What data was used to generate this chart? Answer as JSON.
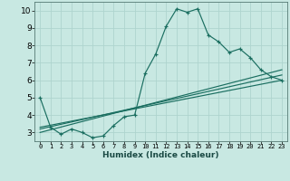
{
  "xlabel": "Humidex (Indice chaleur)",
  "xlim": [
    -0.5,
    23.5
  ],
  "ylim": [
    2.5,
    10.5
  ],
  "xticks": [
    0,
    1,
    2,
    3,
    4,
    5,
    6,
    7,
    8,
    9,
    10,
    11,
    12,
    13,
    14,
    15,
    16,
    17,
    18,
    19,
    20,
    21,
    22,
    23
  ],
  "yticks": [
    3,
    4,
    5,
    6,
    7,
    8,
    9,
    10
  ],
  "bg_color": "#c8e8e2",
  "line_color": "#1a6e60",
  "grid_color": "#aed4ce",
  "series_main": {
    "x": [
      0,
      1,
      2,
      3,
      4,
      5,
      6,
      7,
      8,
      9,
      10,
      11,
      12,
      13,
      14,
      15,
      16,
      17,
      18,
      19,
      20,
      21,
      22,
      23
    ],
    "y": [
      5.0,
      3.3,
      2.9,
      3.2,
      3.0,
      2.7,
      2.8,
      3.4,
      3.9,
      4.0,
      6.4,
      7.5,
      9.1,
      10.1,
      9.9,
      10.1,
      8.6,
      8.2,
      7.6,
      7.8,
      7.3,
      6.6,
      6.2,
      6.0
    ]
  },
  "series_lines": [
    {
      "x": [
        0,
        23
      ],
      "y": [
        3.3,
        6.0
      ]
    },
    {
      "x": [
        0,
        23
      ],
      "y": [
        3.2,
        6.3
      ]
    },
    {
      "x": [
        0,
        23
      ],
      "y": [
        3.0,
        6.6
      ]
    }
  ]
}
